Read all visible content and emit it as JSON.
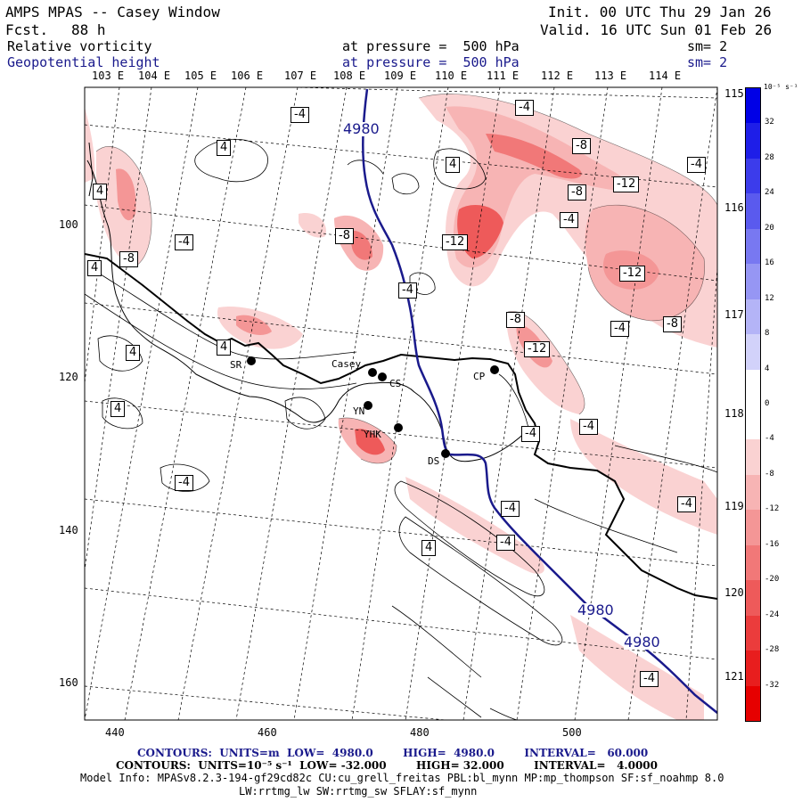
{
  "header": {
    "title": "AMPS MPAS -- Casey Window",
    "fcst_label": "Fcst.",
    "fcst_value": "88 h",
    "init": "Init. 00 UTC Thu 29 Jan 26",
    "valid": "Valid. 16 UTC Sun 01 Feb 26",
    "field1": {
      "name": "Relative vorticity",
      "level": "at pressure =  500 hPa",
      "sm": "sm= 2"
    },
    "field2": {
      "name": "Geopotential height",
      "level": "at pressure =  500 hPa",
      "sm": "sm= 2"
    }
  },
  "top_lon_labels": [
    "103 E",
    "104 E",
    "105 E",
    "106 E",
    "107 E",
    "108 E",
    "109 E",
    "110 E",
    "111 E",
    "112 E",
    "113 E",
    "114 E"
  ],
  "right_lon_labels": [
    "115 E",
    "116 E",
    "117 E",
    "118 E",
    "119 E",
    "120 E",
    "121 E"
  ],
  "x_axis": [
    "440",
    "460",
    "480",
    "500"
  ],
  "y_axis": [
    "100",
    "120",
    "140",
    "160"
  ],
  "colorbar": {
    "unit": "10⁻⁵ s⁻¹",
    "ticks": [
      "32",
      "28",
      "24",
      "20",
      "16",
      "12",
      "8",
      "4",
      "0",
      "-4",
      "-8",
      "-12",
      "-16",
      "-20",
      "-24",
      "-28",
      "-32"
    ],
    "colors": [
      "#0000e6",
      "#1e1ee8",
      "#3c3ceb",
      "#5a5aee",
      "#7878f1",
      "#9696f4",
      "#b4b4f7",
      "#d2d2fa",
      "#ffffff",
      "#ffffff",
      "#fad2d2",
      "#f7b4b4",
      "#f49696",
      "#f17878",
      "#ee5a5a",
      "#eb3c3c",
      "#e81e1e",
      "#e60000"
    ]
  },
  "stations": [
    {
      "id": "SR",
      "label": "SR"
    },
    {
      "id": "Casey",
      "label": "Casey"
    },
    {
      "id": "CS",
      "label": "CS"
    },
    {
      "id": "CP",
      "label": "CP"
    },
    {
      "id": "YN",
      "label": "YN"
    },
    {
      "id": "YHK",
      "label": "YHK"
    },
    {
      "id": "DS",
      "label": "DS"
    }
  ],
  "height_contour_label": "4980",
  "vort_labels": [
    "-4",
    "4",
    "-8",
    "-12"
  ],
  "footer": {
    "line1": "CONTOURS:  UNITS=m  LOW=  4980.0        HIGH=  4980.0        INTERVAL=   60.000",
    "line2": "CONTOURS:  UNITS=10⁻⁵ s⁻¹  LOW= -32.000        HIGH= 32.000        INTERVAL=   4.0000",
    "line3": "Model Info: MPASv8.2.3-194-gf29cd82c CU:cu_grell_freitas PBL:bl_mynn MP:mp_thompson SF:sf_noahmp 8.0",
    "line4": "LW:rrtmg_lw SW:rrtmg_sw SFLAY:sf_mynn"
  }
}
